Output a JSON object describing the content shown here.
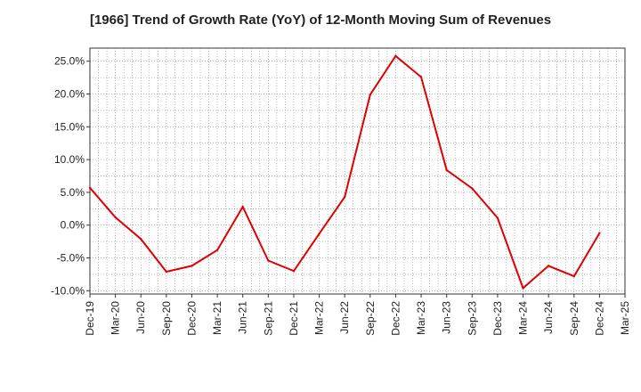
{
  "chart_data": {
    "type": "line",
    "title": "[1966]  Trend of Growth Rate (YoY) of 12-Month Moving Sum of Revenues",
    "xlabel": "",
    "ylabel": "",
    "x_ticks": [
      "Dec-19",
      "Mar-20",
      "Jun-20",
      "Sep-20",
      "Dec-20",
      "Mar-21",
      "Jun-21",
      "Sep-21",
      "Dec-21",
      "Mar-22",
      "Jun-22",
      "Sep-22",
      "Dec-22",
      "Mar-23",
      "Jun-23",
      "Sep-23",
      "Dec-23",
      "Mar-24",
      "Jun-24",
      "Sep-24",
      "Dec-24",
      "Mar-25"
    ],
    "y_ticks": [
      {
        "value": 25,
        "label": "25.0%"
      },
      {
        "value": 20,
        "label": "20.0%"
      },
      {
        "value": 15,
        "label": "15.0%"
      },
      {
        "value": 10,
        "label": "10.0%"
      },
      {
        "value": 5,
        "label": "5.0%"
      },
      {
        "value": 0,
        "label": "0.0%"
      },
      {
        "value": -5,
        "label": "-5.0%"
      },
      {
        "value": -10,
        "label": "-10.0%"
      }
    ],
    "ylim": [
      -10.5,
      27
    ],
    "grid": true,
    "grid_style": "dotted",
    "series": [
      {
        "color": "#e00000",
        "values": [
          5.7,
          1.2,
          -2.1,
          -7.1,
          -6.2,
          -3.8,
          2.8,
          -5.4,
          -7.0,
          -1.3,
          4.3,
          19.9,
          25.8,
          22.6,
          8.4,
          5.6,
          1.1,
          -9.6,
          -6.2,
          -7.8,
          -1.2
        ]
      }
    ]
  }
}
